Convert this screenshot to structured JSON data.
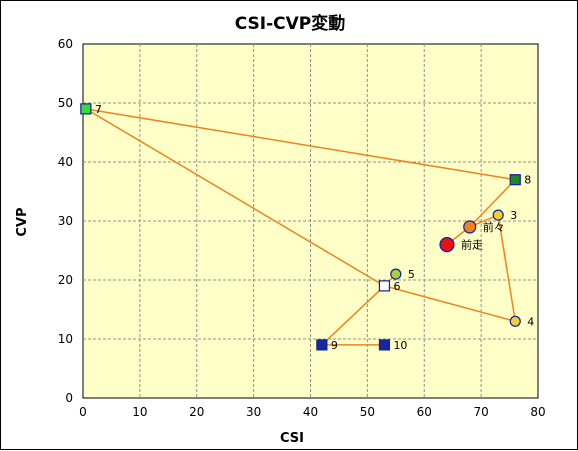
{
  "chart_data": {
    "type": "scatter",
    "title": "CSI-CVP変動",
    "xlabel": "CSI",
    "ylabel": "CVP",
    "xlim": [
      0,
      80
    ],
    "ylim": [
      0,
      60
    ],
    "xticks": [
      0,
      10,
      20,
      30,
      40,
      50,
      60,
      70,
      80
    ],
    "yticks": [
      0,
      10,
      20,
      30,
      40,
      50,
      60
    ],
    "grid": true,
    "plot_background": "#ffffc8",
    "line_color": "#f0821e",
    "points": [
      {
        "label": "前走",
        "x": 64,
        "y": 26,
        "marker": "circle-large",
        "fill": "#e81010"
      },
      {
        "label": "前々",
        "x": 68,
        "y": 29,
        "marker": "circle-medium",
        "fill": "#f0821e"
      },
      {
        "label": "3",
        "x": 73,
        "y": 31,
        "marker": "circle",
        "fill": "#f0d030"
      },
      {
        "label": "4",
        "x": 76,
        "y": 13,
        "marker": "circle",
        "fill": "#f0d030"
      },
      {
        "label": "5",
        "x": 55,
        "y": 21,
        "marker": "circle",
        "fill": "#a8d040"
      },
      {
        "label": "6",
        "x": 53,
        "y": 19,
        "marker": "square",
        "fill": "#ffffff"
      },
      {
        "label": "7",
        "x": 0.5,
        "y": 49,
        "marker": "square",
        "fill": "#30e030"
      },
      {
        "label": "8",
        "x": 76,
        "y": 37,
        "marker": "square",
        "fill": "#208820"
      },
      {
        "label": "9",
        "x": 42,
        "y": 9,
        "marker": "square",
        "fill": "#1428a0"
      },
      {
        "label": "10",
        "x": 53,
        "y": 9,
        "marker": "square",
        "fill": "#1428a0"
      }
    ],
    "path_order": [
      "前走",
      "前々",
      "3",
      "4",
      "5",
      "6",
      "7",
      "8",
      "9",
      "10"
    ],
    "path_segments": [
      [
        "前々",
        "3"
      ],
      [
        "3",
        "4"
      ],
      [
        "4",
        "6"
      ],
      [
        "6",
        "7"
      ],
      [
        "7",
        "8"
      ],
      [
        "8",
        "前々"
      ],
      [
        "前走",
        "前々"
      ],
      [
        "5",
        "6"
      ],
      [
        "6",
        "9"
      ],
      [
        "9",
        "10"
      ]
    ]
  }
}
